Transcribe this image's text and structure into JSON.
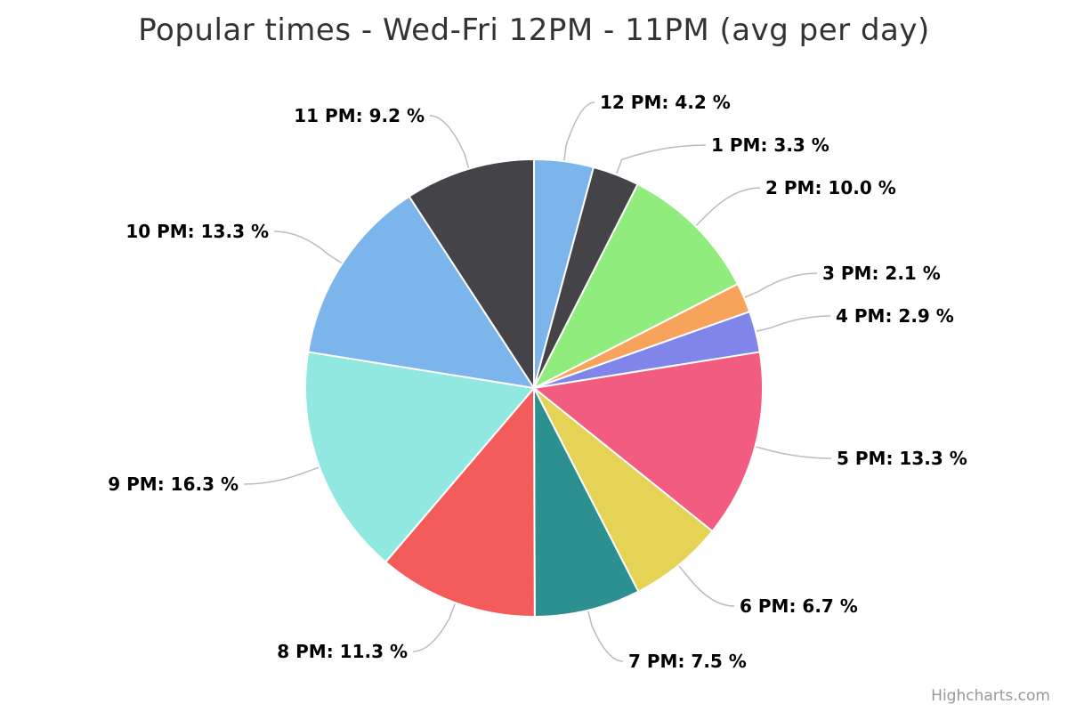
{
  "chart_data": {
    "type": "pie",
    "title": "Popular times - Wed-Fri 12PM - 11PM (avg per day)",
    "categories": [
      "12 PM",
      "1 PM",
      "2 PM",
      "3 PM",
      "4 PM",
      "5 PM",
      "6 PM",
      "7 PM",
      "8 PM",
      "9 PM",
      "10 PM",
      "11 PM"
    ],
    "values": [
      4.2,
      3.3,
      10.0,
      2.1,
      2.9,
      13.3,
      6.7,
      7.5,
      11.3,
      16.3,
      13.3,
      9.2
    ],
    "labels": [
      "12 PM: 4.2 %",
      "1 PM: 3.3 %",
      "2 PM: 10.0 %",
      "3 PM: 2.1 %",
      "4 PM: 2.9 %",
      "5 PM: 13.3 %",
      "6 PM: 6.7 %",
      "7 PM: 7.5 %",
      "8 PM: 11.3 %",
      "9 PM: 16.3 %",
      "10 PM: 13.3 %",
      "11 PM: 9.2 %"
    ],
    "colors": [
      "#7cb5ec",
      "#434348",
      "#90ed7d",
      "#f7a35c",
      "#8085e9",
      "#f15c80",
      "#e4d354",
      "#2b908f",
      "#f45b5b",
      "#91e8e1",
      "#7cb5ec",
      "#434348"
    ]
  },
  "credits": "Highcharts.com"
}
